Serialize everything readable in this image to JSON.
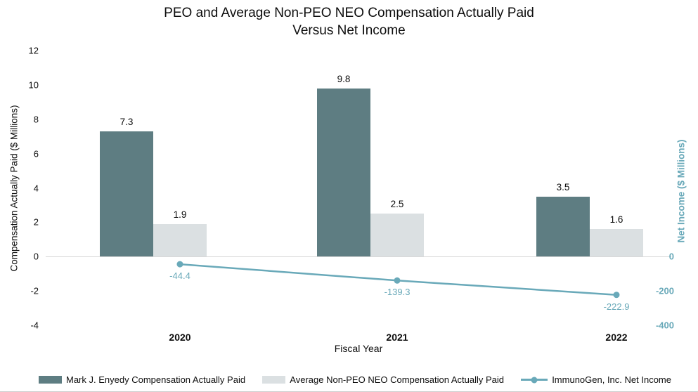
{
  "header": {
    "title_line1": "PEO and Average Non-PEO NEO Compensation Actually Paid",
    "title_line2": "Versus Net Income"
  },
  "chart_data": {
    "type": "bar+line",
    "title": "PEO and Average Non-PEO NEO Compensation Actually Paid Versus Net Income",
    "categories": [
      "2020",
      "2021",
      "2022"
    ],
    "bar_series": [
      {
        "name": "Mark J. Enyedy Compensation Actually Paid",
        "values": [
          7.3,
          9.8,
          3.5
        ],
        "labels": [
          "7.3",
          "9.8",
          "3.5"
        ],
        "color": "#5e7d82",
        "axis": "left"
      },
      {
        "name": "Average Non-PEO NEO Compensation Actually Paid",
        "values": [
          1.9,
          2.5,
          1.6
        ],
        "labels": [
          "1.9",
          "2.5",
          "1.6"
        ],
        "color": "#dbe0e2",
        "axis": "left"
      }
    ],
    "line_series": [
      {
        "name": "ImmunoGen, Inc. Net Income",
        "values": [
          -44.4,
          -139.3,
          -222.9
        ],
        "labels": [
          "-44.4",
          "-139.3",
          "-222.9"
        ],
        "color": "#69a9b9",
        "axis": "right"
      }
    ],
    "left_axis": {
      "label": "Compensation Actually Paid ($ Millions)",
      "min": -4,
      "max": 12,
      "ticks": [
        12,
        10,
        8,
        6,
        4,
        2,
        0,
        -2,
        -4
      ]
    },
    "right_axis": {
      "label": "Net Income ($ Millions)",
      "min": -400,
      "max": 1200,
      "ticks": [
        0,
        -200,
        -400
      ],
      "color": "#69a9b9"
    },
    "x_axis": {
      "label": "Fiscal Year"
    },
    "legend_position": "bottom",
    "grid": "zero-line-only"
  }
}
